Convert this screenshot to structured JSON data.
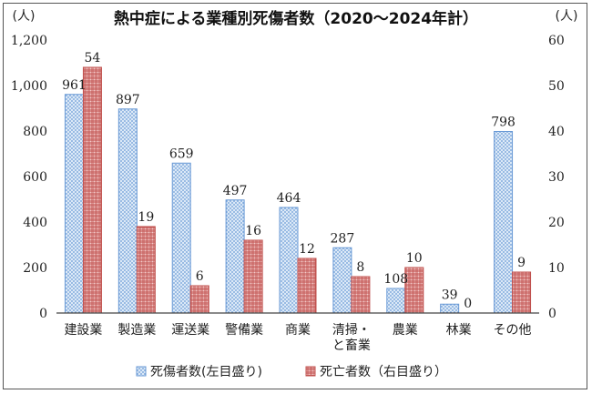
{
  "chart_data": {
    "type": "bar",
    "title": "熱中症による業種別死傷者数（2020〜2024年計）",
    "left_unit": "(人)",
    "right_unit": "(人)",
    "categories": [
      "建設業",
      "製造業",
      "運送業",
      "警備業",
      "商業",
      "清掃・と畜業",
      "農業",
      "林業",
      "その他"
    ],
    "category_lines": [
      [
        "建設業"
      ],
      [
        "製造業"
      ],
      [
        "運送業"
      ],
      [
        "警備業"
      ],
      [
        "商業"
      ],
      [
        "清掃・",
        "と畜業"
      ],
      [
        "農業"
      ],
      [
        "林業"
      ],
      [
        "その他"
      ]
    ],
    "series": [
      {
        "name": "死傷者数(左目盛り)",
        "axis": "left",
        "values": [
          961,
          897,
          659,
          497,
          464,
          287,
          108,
          39,
          798
        ]
      },
      {
        "name": "死亡者数（右目盛り）",
        "axis": "right",
        "values": [
          54,
          19,
          6,
          16,
          12,
          8,
          10,
          0,
          9
        ]
      }
    ],
    "left_axis": {
      "ylim": [
        0,
        1200
      ],
      "ticks": [
        "0",
        "200",
        "400",
        "600",
        "800",
        "1,000",
        "1,200"
      ]
    },
    "right_axis": {
      "ylim": [
        0,
        60
      ],
      "ticks": [
        "0",
        "10",
        "20",
        "30",
        "40",
        "50",
        "60"
      ]
    },
    "grid": false,
    "legend_position": "bottom",
    "colors": {
      "casualties": "#6a9ad6",
      "deaths": "#c0504d"
    }
  }
}
